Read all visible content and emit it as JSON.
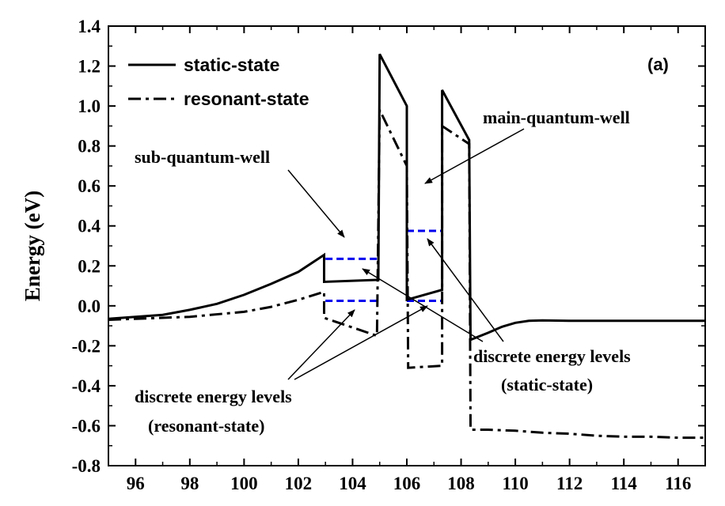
{
  "chart_data": {
    "type": "line",
    "panel_label": "(a)",
    "ylabel": "Energy (eV)",
    "xlim": [
      95,
      117
    ],
    "ylim": [
      -0.8,
      1.4
    ],
    "xticks": [
      96,
      98,
      100,
      102,
      104,
      106,
      108,
      110,
      112,
      114,
      116
    ],
    "yticks": [
      -0.8,
      -0.6,
      -0.4,
      -0.2,
      0.0,
      0.2,
      0.4,
      0.6,
      0.8,
      1.0,
      1.2,
      1.4
    ],
    "ytick_labels": [
      "-0.8",
      "-0.6",
      "-0.4",
      "-0.2",
      "0.0",
      "0.2",
      "0.4",
      "0.6",
      "0.8",
      "1.0",
      "1.2",
      "1.4"
    ],
    "legend_position": "top-left",
    "grid": false,
    "series": [
      {
        "name": "static-state",
        "style": "solid",
        "color": "#000000",
        "x": [
          95,
          96,
          97,
          98,
          99,
          100,
          101,
          102,
          102.95,
          102.95,
          104.9,
          104.95,
          105.0,
          106.0,
          106.0,
          107.3,
          107.3,
          108.3,
          108.35,
          109,
          109.5,
          110,
          110.5,
          111,
          112,
          114,
          117
        ],
        "y": [
          -0.065,
          -0.055,
          -0.045,
          -0.02,
          0.01,
          0.055,
          0.11,
          0.17,
          0.255,
          0.12,
          0.13,
          0.13,
          1.26,
          1.0,
          0.03,
          0.08,
          1.08,
          0.83,
          -0.17,
          -0.135,
          -0.105,
          -0.085,
          -0.075,
          -0.073,
          -0.075,
          -0.075,
          -0.075
        ]
      },
      {
        "name": "resonant-state",
        "style": "dashdot",
        "color": "#000000",
        "x": [
          95,
          96,
          98,
          100,
          101,
          102,
          102.95,
          102.95,
          104.9,
          105.0,
          106.0,
          106.05,
          107.3,
          107.3,
          108.3,
          108.35,
          109,
          110,
          111,
          112,
          113,
          114,
          115,
          116,
          117
        ],
        "y": [
          -0.07,
          -0.065,
          -0.055,
          -0.03,
          -0.005,
          0.03,
          0.07,
          -0.06,
          -0.15,
          0.98,
          0.7,
          -0.31,
          -0.3,
          0.9,
          0.81,
          -0.62,
          -0.62,
          -0.625,
          -0.635,
          -0.64,
          -0.65,
          -0.655,
          -0.655,
          -0.66,
          -0.66
        ]
      }
    ],
    "energy_levels": {
      "color": "#0000ee",
      "lines": [
        {
          "x": [
            103.0,
            104.9
          ],
          "y": 0.235
        },
        {
          "x": [
            103.0,
            104.9
          ],
          "y": 0.025
        },
        {
          "x": [
            106.0,
            107.3
          ],
          "y": 0.375
        },
        {
          "x": [
            106.0,
            107.3
          ],
          "y": 0.025
        }
      ]
    },
    "annotations": {
      "main_well": "main-quantum-well",
      "sub_well": "sub-quantum-well",
      "static_levels_line1": "discrete energy levels",
      "static_levels_line2": "(static-state)",
      "resonant_levels_line1": "discrete energy levels",
      "resonant_levels_line2": "(resonant-state)"
    }
  }
}
